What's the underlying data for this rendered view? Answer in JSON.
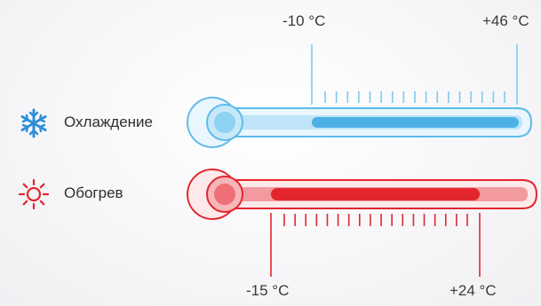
{
  "modes": [
    {
      "label": "Охлаждение",
      "icon": "snowflake-icon",
      "color": "#3aa6dd",
      "min_label": "-10 °C",
      "max_label": "+46 °C",
      "range": [
        -10,
        46
      ]
    },
    {
      "label": "Обогрев",
      "icon": "sun-icon",
      "color": "#e3262e",
      "min_label": "-15 °C",
      "max_label": "+24 °C",
      "range": [
        -15,
        24
      ]
    }
  ]
}
